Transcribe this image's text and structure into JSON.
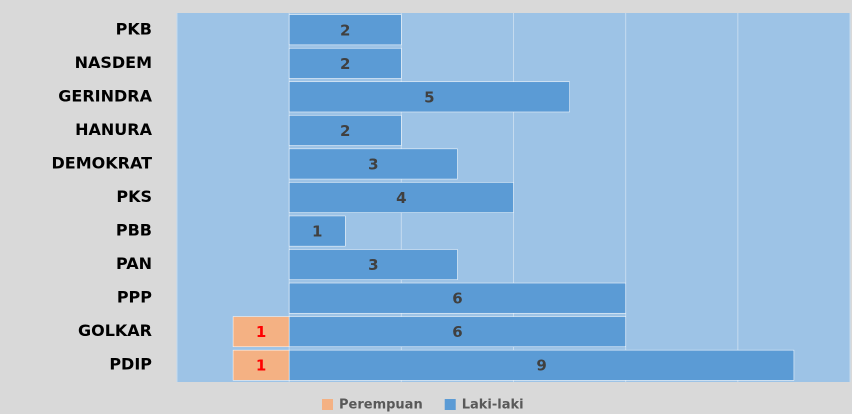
{
  "chart_data": {
    "type": "diverging-bar",
    "categories": [
      "PKB",
      "NASDEM",
      "GERINDRA",
      "HANURA",
      "DEMOKRAT",
      "PKS",
      "PBB",
      "PAN",
      "PPP",
      "GOLKAR",
      "PDIP"
    ],
    "series": [
      {
        "name": "Perempuan",
        "color": "#f4b183",
        "label_color": "#ff0000",
        "direction": "left",
        "values": [
          null,
          null,
          null,
          null,
          null,
          null,
          null,
          null,
          null,
          1,
          1
        ]
      },
      {
        "name": "Laki-laki",
        "color": "#5b9bd5",
        "label_color": "#404040",
        "direction": "right",
        "values": [
          2,
          2,
          5,
          2,
          3,
          4,
          1,
          3,
          6,
          6,
          9
        ]
      }
    ],
    "xlim": [
      -2,
      10
    ],
    "xticks": [
      -2,
      0,
      2,
      4,
      6,
      8,
      10
    ],
    "grid": true,
    "legend": "bottom"
  }
}
